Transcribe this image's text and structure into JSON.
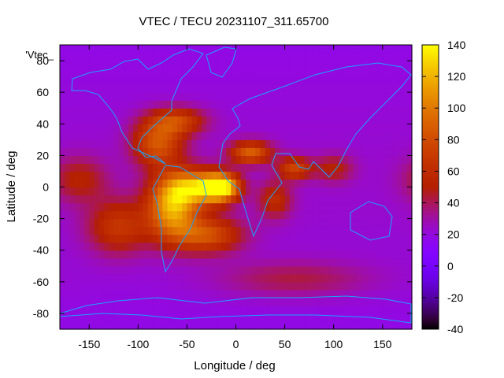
{
  "chart_data": {
    "type": "heatmap",
    "title": "VTEC / TECU 20231107_311.65700",
    "xlabel": "Longitude / deg",
    "ylabel": "Latitude / deg",
    "xlim": [
      -180,
      180
    ],
    "ylim": [
      -90,
      90
    ],
    "xticks": [
      -150,
      -100,
      -50,
      0,
      50,
      100,
      150
    ],
    "yticks": [
      -80,
      -60,
      -40,
      -20,
      0,
      20,
      40,
      60,
      80
    ],
    "xtick_labels": [
      "-150",
      "-100",
      "-50",
      "0",
      "50",
      "100",
      "150"
    ],
    "ytick_labels": [
      "-80",
      "-60",
      "-40",
      "-20",
      "0",
      "20",
      "40",
      "60",
      "80"
    ],
    "legend_label": "'Vtec_",
    "colorbar": {
      "range": [
        -40,
        140
      ],
      "ticks": [
        140,
        120,
        100,
        80,
        60,
        40,
        20,
        0,
        -20,
        -40
      ],
      "tick_labels": [
        "140",
        "120",
        "100",
        "80",
        "60",
        "40",
        "20",
        "0",
        "-20",
        "-40"
      ],
      "colormap": "gnuplot-rgbformulae-7-5-15"
    },
    "grid_resolution_deg": [
      5,
      5
    ],
    "vtec_peaks": [
      {
        "lon": -15,
        "lat": 0,
        "value": 135,
        "sigma_lon": 13,
        "sigma_lat": 6
      },
      {
        "lon": -65,
        "lat": -12,
        "value": 110,
        "sigma_lon": 18,
        "sigma_lat": 14
      },
      {
        "lon": -40,
        "lat": 0,
        "value": 95,
        "sigma_lon": 20,
        "sigma_lat": 8
      },
      {
        "lon": 15,
        "lat": 22,
        "value": 85,
        "sigma_lon": 15,
        "sigma_lat": 5
      },
      {
        "lon": -80,
        "lat": 28,
        "value": 80,
        "sigma_lon": 18,
        "sigma_lat": 10
      },
      {
        "lon": -60,
        "lat": 42,
        "value": 70,
        "sigma_lon": 20,
        "sigma_lat": 6
      },
      {
        "lon": -30,
        "lat": -30,
        "value": 78,
        "sigma_lon": 25,
        "sigma_lat": 8
      },
      {
        "lon": -120,
        "lat": -25,
        "value": 62,
        "sigma_lon": 22,
        "sigma_lat": 12
      },
      {
        "lon": 60,
        "lat": 12,
        "value": 70,
        "sigma_lon": 12,
        "sigma_lat": 5
      },
      {
        "lon": 40,
        "lat": -8,
        "value": 55,
        "sigma_lon": 12,
        "sigma_lat": 8
      },
      {
        "lon": 100,
        "lat": 12,
        "value": 48,
        "sigma_lon": 14,
        "sigma_lat": 6
      },
      {
        "lon": -160,
        "lat": 5,
        "value": 48,
        "sigma_lon": 20,
        "sigma_lat": 10
      },
      {
        "lon": 60,
        "lat": -58,
        "value": 40,
        "sigma_lon": 55,
        "sigma_lat": 8
      }
    ],
    "vtec_background": {
      "base": 18,
      "equatorial_amplitude": 5
    }
  }
}
